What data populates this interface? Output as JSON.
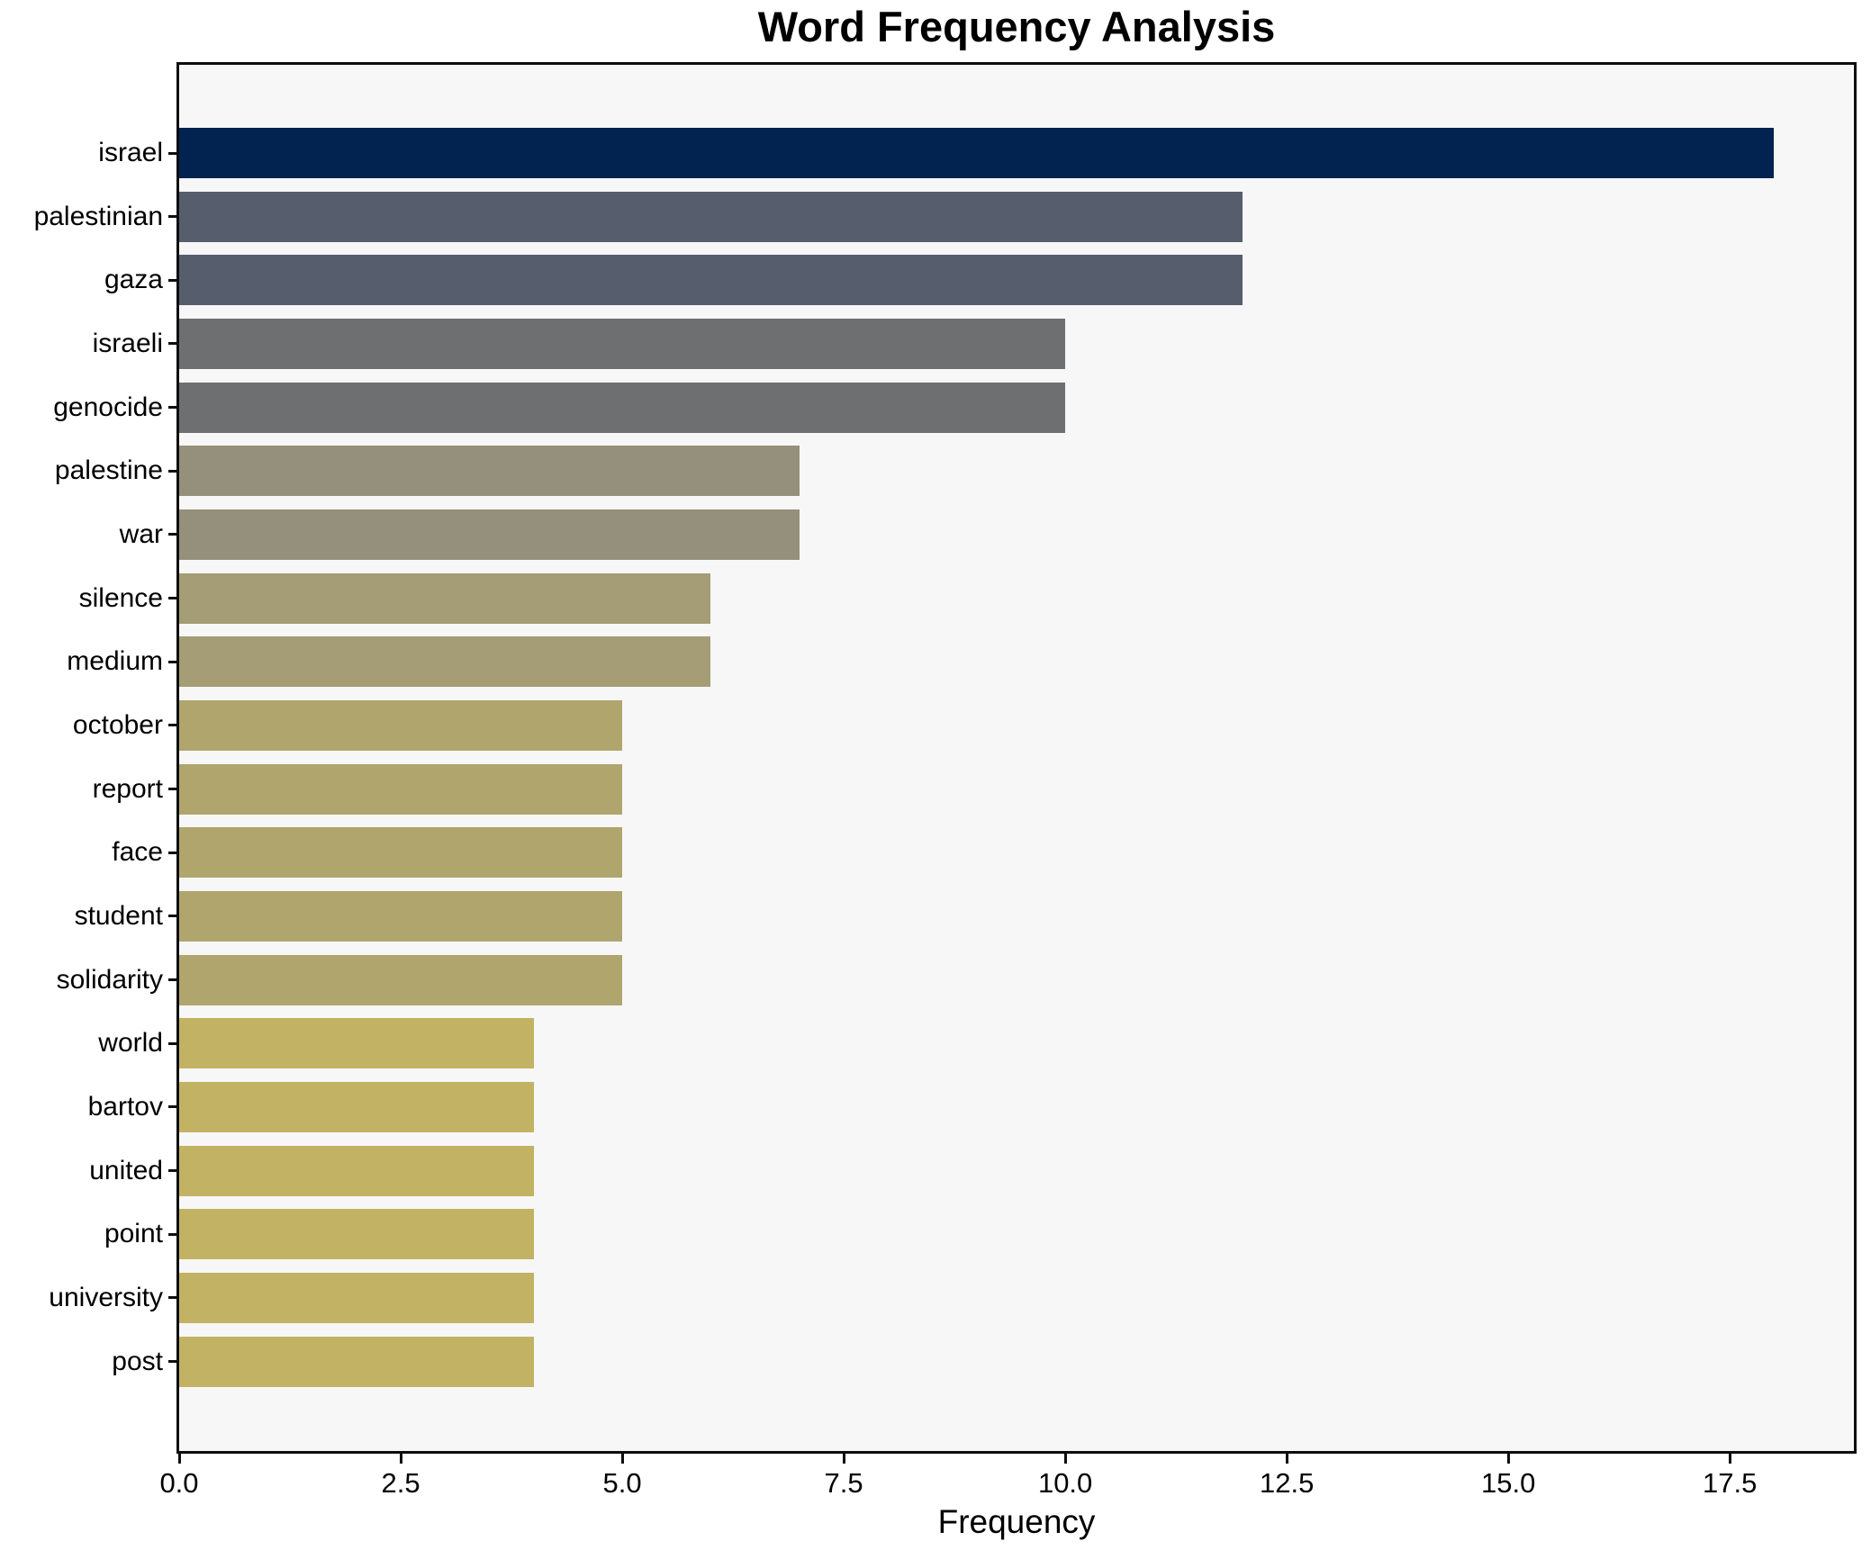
{
  "title": "Word Frequency Analysis",
  "xlabel": "Frequency",
  "chart_data": {
    "type": "bar",
    "orientation": "horizontal",
    "title": "Word Frequency Analysis",
    "xlabel": "Frequency",
    "ylabel": "",
    "grid": false,
    "legend": false,
    "plot_background": "#f7f7f8",
    "figure_background": "#ffffff",
    "xlim": [
      0,
      18.9
    ],
    "x_tick_values": [
      0.0,
      2.5,
      5.0,
      7.5,
      10.0,
      12.5,
      15.0,
      17.5
    ],
    "x_tick_labels": [
      "0.0",
      "2.5",
      "5.0",
      "7.5",
      "10.0",
      "12.5",
      "15.0",
      "17.5"
    ],
    "categories": [
      "israel",
      "palestinian",
      "gaza",
      "israeli",
      "genocide",
      "palestine",
      "war",
      "silence",
      "medium",
      "october",
      "report",
      "face",
      "student",
      "solidarity",
      "world",
      "bartov",
      "united",
      "point",
      "university",
      "post"
    ],
    "values": [
      18,
      12,
      12,
      10,
      10,
      7,
      7,
      6,
      6,
      5,
      5,
      5,
      5,
      5,
      4,
      4,
      4,
      4,
      4,
      4
    ],
    "bar_colors": [
      "#02224f",
      "#565d6d",
      "#565d6d",
      "#6e6f70",
      "#6e6f70",
      "#95907b",
      "#95907b",
      "#a49d75",
      "#a49d75",
      "#afa56d",
      "#afa56d",
      "#afa56d",
      "#afa56d",
      "#afa56d",
      "#c2b264",
      "#c2b264",
      "#c2b264",
      "#c2b264",
      "#c2b264",
      "#c2b264"
    ]
  }
}
